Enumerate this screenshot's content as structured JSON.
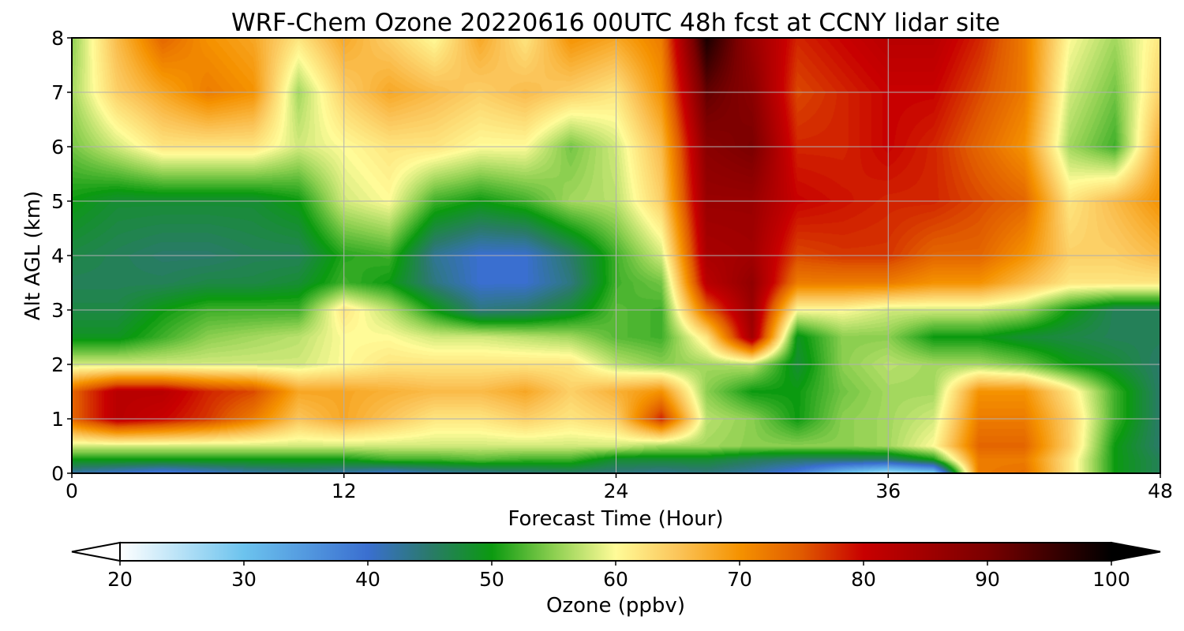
{
  "chart_data": {
    "type": "heatmap",
    "title": "WRF-Chem Ozone  20220616 00UTC 48h fcst at CCNY lidar site",
    "xlabel": "Forecast Time (Hour)",
    "ylabel": "Alt AGL (km)",
    "xlim": [
      0,
      48
    ],
    "ylim": [
      0,
      8
    ],
    "x_ticks": [
      "0",
      "12",
      "24",
      "36",
      "48"
    ],
    "y_ticks": [
      "0",
      "1",
      "2",
      "3",
      "4",
      "5",
      "6",
      "7",
      "8"
    ],
    "grid": true,
    "colorbar": {
      "label": "Ozone  (ppbv)",
      "range": [
        20,
        100
      ],
      "ticks": [
        "20",
        "30",
        "40",
        "50",
        "60",
        "70",
        "80",
        "90",
        "100"
      ],
      "extend": "both",
      "colormap": [
        [
          20,
          "#ffffff"
        ],
        [
          30,
          "#6cc3ee"
        ],
        [
          40,
          "#3a6fd0"
        ],
        [
          45,
          "#2a7a6a"
        ],
        [
          50,
          "#0b9a10"
        ],
        [
          55,
          "#8ccf50"
        ],
        [
          60,
          "#fffb98"
        ],
        [
          65,
          "#fbc55a"
        ],
        [
          70,
          "#f59200"
        ],
        [
          75,
          "#e05a00"
        ],
        [
          80,
          "#c80000"
        ],
        [
          90,
          "#7a0000"
        ],
        [
          100,
          "#000000"
        ]
      ]
    },
    "hours": [
      0,
      2,
      4,
      6,
      8,
      10,
      12,
      14,
      16,
      18,
      20,
      22,
      24,
      26,
      28,
      30,
      32,
      34,
      36,
      38,
      40,
      42,
      44,
      46,
      48
    ],
    "altitudes_km": [
      0,
      0.25,
      0.5,
      1,
      1.5,
      2,
      2.5,
      3,
      3.5,
      4,
      5,
      6,
      7,
      8
    ],
    "ozone_ppbv": [
      [
        42,
        40,
        38,
        40,
        42,
        43,
        42,
        40,
        42,
        43,
        44,
        45,
        44,
        43,
        44,
        42,
        38,
        30,
        25,
        28,
        72,
        73,
        62,
        50,
        46
      ],
      [
        50,
        50,
        50,
        50,
        50,
        50,
        50,
        52,
        52,
        53,
        52,
        52,
        48,
        48,
        48,
        46,
        45,
        45,
        45,
        50,
        72,
        72,
        62,
        50,
        46
      ],
      [
        58,
        58,
        58,
        58,
        58,
        58,
        58,
        58,
        58,
        58,
        58,
        58,
        58,
        56,
        56,
        55,
        55,
        55,
        56,
        60,
        74,
        74,
        64,
        50,
        45
      ],
      [
        74,
        82,
        80,
        77,
        72,
        65,
        68,
        65,
        62,
        62,
        64,
        62,
        64,
        78,
        57,
        55,
        50,
        55,
        56,
        58,
        72,
        72,
        64,
        52,
        45
      ],
      [
        74,
        82,
        82,
        78,
        76,
        68,
        68,
        67,
        66,
        66,
        68,
        64,
        67,
        70,
        55,
        50,
        50,
        54,
        56,
        56,
        70,
        70,
        62,
        52,
        45
      ],
      [
        58,
        58,
        58,
        58,
        58,
        58,
        60,
        62,
        62,
        62,
        62,
        62,
        57,
        55,
        56,
        57,
        48,
        55,
        57,
        56,
        56,
        54,
        50,
        48,
        45
      ],
      [
        49,
        49,
        52,
        55,
        56,
        57,
        60,
        60,
        58,
        58,
        57,
        56,
        53,
        52,
        62,
        85,
        49,
        55,
        55,
        50,
        50,
        48,
        47,
        46,
        46
      ],
      [
        47,
        47,
        50,
        52,
        52,
        52,
        62,
        57,
        50,
        44,
        45,
        48,
        53,
        52,
        74,
        86,
        60,
        60,
        58,
        58,
        58,
        56,
        50,
        46,
        46
      ],
      [
        46,
        46,
        46,
        47,
        47,
        48,
        52,
        50,
        44,
        40,
        40,
        44,
        52,
        54,
        82,
        87,
        72,
        72,
        72,
        70,
        70,
        66,
        62,
        62,
        62
      ],
      [
        47,
        46,
        45,
        45,
        46,
        46,
        51,
        52,
        43,
        40,
        40,
        45,
        52,
        58,
        84,
        85,
        76,
        77,
        77,
        74,
        74,
        70,
        64,
        64,
        66
      ],
      [
        50,
        48,
        48,
        48,
        48,
        50,
        58,
        60,
        52,
        50,
        52,
        56,
        57,
        64,
        86,
        86,
        80,
        79,
        78,
        78,
        76,
        74,
        62,
        66,
        70
      ],
      [
        54,
        58,
        62,
        62,
        62,
        58,
        60,
        62,
        62,
        60,
        60,
        54,
        58,
        66,
        88,
        90,
        78,
        78,
        80,
        78,
        74,
        70,
        56,
        52,
        68
      ],
      [
        56,
        64,
        68,
        72,
        70,
        56,
        64,
        68,
        66,
        64,
        66,
        64,
        62,
        70,
        92,
        88,
        76,
        78,
        80,
        80,
        76,
        72,
        58,
        54,
        64
      ],
      [
        55,
        66,
        74,
        70,
        68,
        62,
        68,
        64,
        60,
        68,
        62,
        70,
        68,
        72,
        98,
        86,
        78,
        80,
        82,
        82,
        78,
        72,
        60,
        56,
        62
      ]
    ]
  }
}
